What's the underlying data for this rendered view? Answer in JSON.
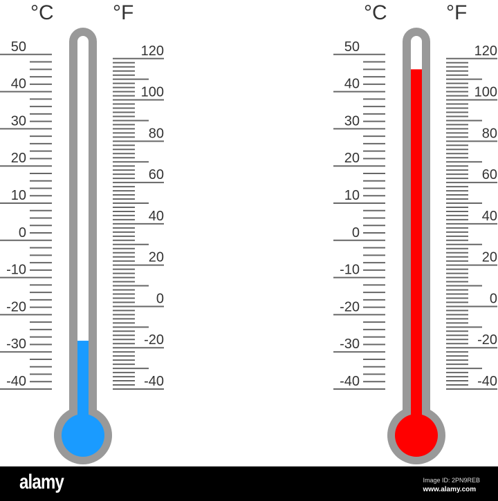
{
  "thermometers": [
    {
      "celsius_unit": "°C",
      "fahrenheit_unit": "°F",
      "reading_celsius": -27,
      "fill_color": "#1a9bff"
    },
    {
      "celsius_unit": "°C",
      "fahrenheit_unit": "°F",
      "reading_celsius": 46,
      "fill_color": "#ff0000"
    }
  ],
  "celsius_labels": [
    "50",
    "40",
    "30",
    "20",
    "10",
    "0",
    "-10",
    "-20",
    "-30",
    "-40"
  ],
  "fahrenheit_labels": [
    "120",
    "100",
    "80",
    "60",
    "40",
    "20",
    "0",
    "-20",
    "-40"
  ],
  "colors": {
    "tube": "#999999",
    "ticks": "#666666"
  },
  "footer": {
    "logo": "alamy",
    "image_id": "Image ID: 2PN9REB",
    "url": "www.alamy.com"
  }
}
